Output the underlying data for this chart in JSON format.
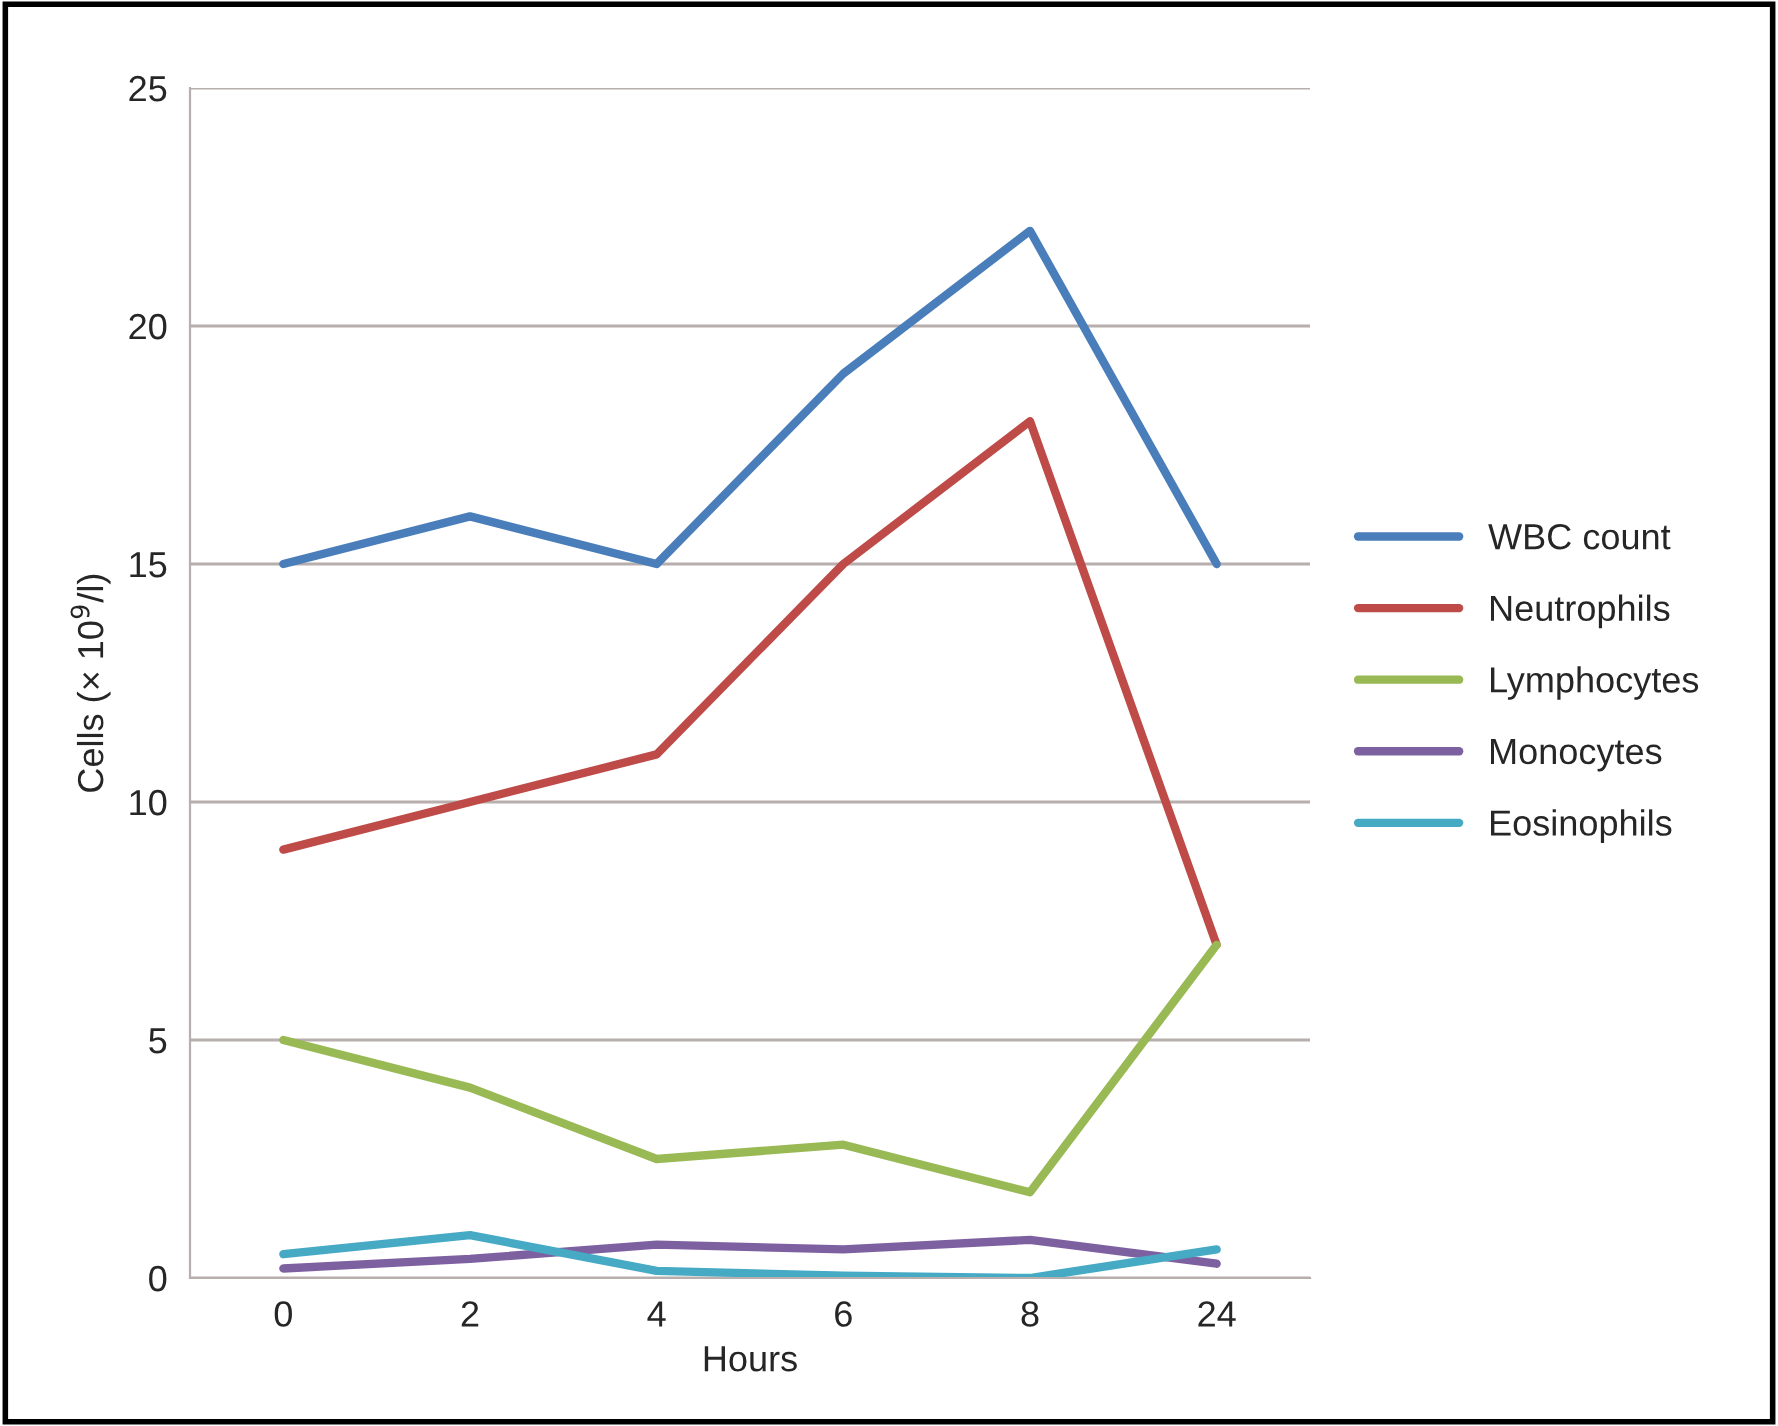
{
  "chart_data": {
    "type": "line",
    "xlabel": "Hours",
    "ylabel": "Cells (× 10$^{9}$/l)",
    "categories": [
      "0",
      "2",
      "4",
      "6",
      "8",
      "24"
    ],
    "series": [
      {
        "name": "WBC count",
        "color": "#4a7ebb",
        "values": [
          15,
          16,
          15,
          19,
          22,
          15
        ]
      },
      {
        "name": "Neutrophils",
        "color": "#be4b48",
        "values": [
          9,
          10,
          11,
          15,
          18,
          7
        ]
      },
      {
        "name": "Lymphocytes",
        "color": "#98b954",
        "values": [
          5,
          4,
          2.5,
          2.8,
          1.8,
          7
        ]
      },
      {
        "name": "Monocytes",
        "color": "#7d60a0",
        "values": [
          0.2,
          0.4,
          0.7,
          0.6,
          0.8,
          0.3
        ]
      },
      {
        "name": "Eosinophils",
        "color": "#46aac5",
        "values": [
          0.5,
          0.9,
          0.15,
          0.05,
          0,
          0.6
        ]
      }
    ],
    "ylim": [
      0,
      25
    ],
    "yticks": [
      0,
      5,
      10,
      15,
      20,
      25
    ],
    "grid": "y",
    "legend": "right",
    "marker": "none",
    "line_style": "solid"
  }
}
